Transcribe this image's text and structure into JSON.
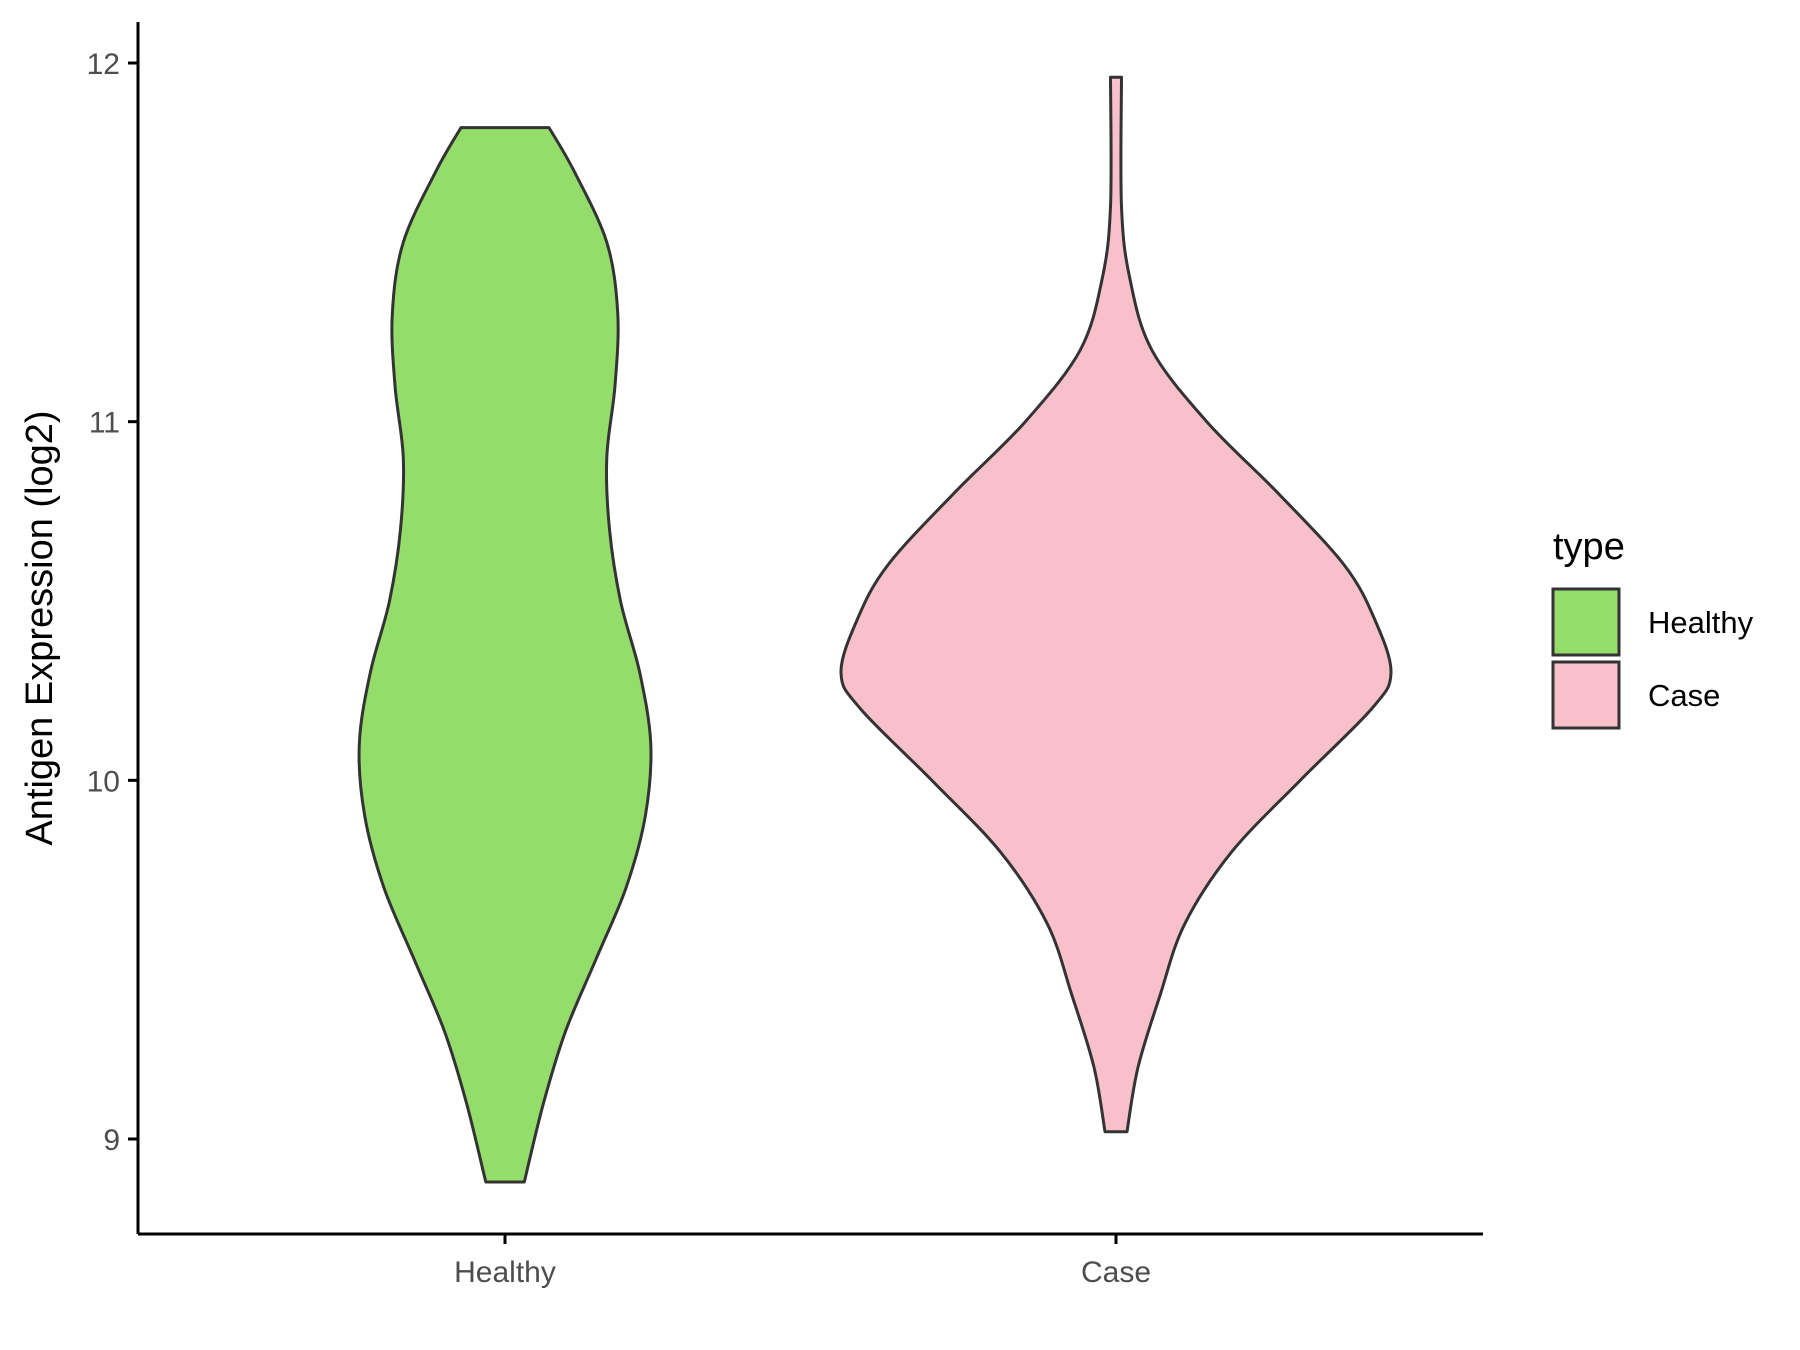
{
  "chart_data": {
    "type": "violin",
    "title": "",
    "xlabel": "",
    "ylabel": "Antigen Expression (log2)",
    "ylim": [
      8.75,
      12.1
    ],
    "yticks": [
      9,
      10,
      11,
      12
    ],
    "ytick_labels": [
      "9",
      "10",
      "11",
      "12"
    ],
    "grid": false,
    "legend": {
      "title": "type",
      "placement": "right",
      "entries": [
        {
          "label": "Healthy",
          "color": "#95dd6b"
        },
        {
          "label": "Case",
          "color": "#f7c0cb"
        }
      ]
    },
    "outline_color": "#333333",
    "categories": [
      "Healthy",
      "Case"
    ],
    "series": [
      {
        "name": "Healthy",
        "color": "#95dd6b",
        "min": 8.88,
        "max": 11.82,
        "density": [
          [
            8.88,
            0.07
          ],
          [
            9.1,
            0.14
          ],
          [
            9.3,
            0.22
          ],
          [
            9.5,
            0.33
          ],
          [
            9.7,
            0.44
          ],
          [
            9.9,
            0.51
          ],
          [
            10.1,
            0.53
          ],
          [
            10.3,
            0.49
          ],
          [
            10.5,
            0.42
          ],
          [
            10.7,
            0.38
          ],
          [
            10.9,
            0.37
          ],
          [
            11.1,
            0.4
          ],
          [
            11.3,
            0.41
          ],
          [
            11.5,
            0.37
          ],
          [
            11.7,
            0.25
          ],
          [
            11.82,
            0.16
          ]
        ]
      },
      {
        "name": "Case",
        "color": "#f7c0cb",
        "min": 9.02,
        "max": 11.96,
        "density": [
          [
            9.02,
            0.04
          ],
          [
            9.2,
            0.08
          ],
          [
            9.4,
            0.16
          ],
          [
            9.6,
            0.25
          ],
          [
            9.8,
            0.42
          ],
          [
            10.0,
            0.67
          ],
          [
            10.2,
            0.93
          ],
          [
            10.3,
            1.0
          ],
          [
            10.45,
            0.94
          ],
          [
            10.6,
            0.83
          ],
          [
            10.8,
            0.59
          ],
          [
            11.0,
            0.33
          ],
          [
            11.2,
            0.13
          ],
          [
            11.4,
            0.05
          ],
          [
            11.6,
            0.02
          ],
          [
            11.96,
            0.02
          ]
        ]
      }
    ]
  }
}
